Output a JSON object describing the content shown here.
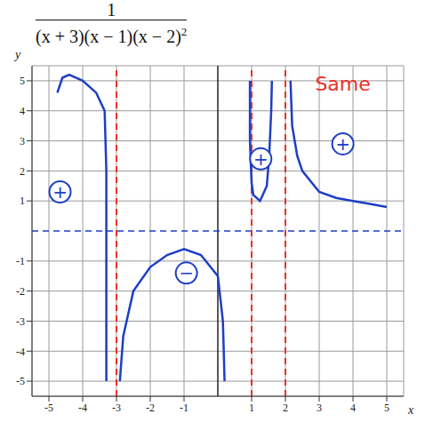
{
  "chart_data": {
    "type": "line",
    "title": {
      "numerator": "1",
      "denominator": "(x + 3)(x − 1)(x − 2)",
      "exponent": "2"
    },
    "xlabel": "x",
    "ylabel": "y",
    "xlim": [
      -5.5,
      5.5
    ],
    "ylim": [
      -5.5,
      5.5
    ],
    "xticks": [
      -5,
      -4,
      -3,
      -2,
      -1,
      1,
      2,
      3,
      4,
      5
    ],
    "yticks": [
      -5,
      -4,
      -3,
      -2,
      -1,
      1,
      2,
      3,
      4,
      5
    ],
    "grid": true,
    "color": "#1d3fc4",
    "series": [
      {
        "x": [
          -4.75,
          -4.6,
          -4.4,
          -4.0,
          -3.6,
          -3.35,
          -3.3,
          -3.3,
          -3.3
        ],
        "values": [
          4.6,
          5.1,
          5.2,
          5.0,
          4.6,
          4.0,
          2.0,
          -2.0,
          -5.0
        ]
      },
      {
        "x": [
          -2.9,
          -2.8,
          -2.5,
          -2.0,
          -1.5,
          -1.0,
          -0.5,
          0.0,
          0.15,
          0.2
        ],
        "values": [
          -5.0,
          -3.5,
          -2.0,
          -1.2,
          -0.8,
          -0.6,
          -0.8,
          -1.5,
          -3.0,
          -5.0
        ]
      },
      {
        "x": [
          0.95,
          0.95,
          1.0,
          1.05,
          1.25,
          1.45,
          1.52,
          1.58,
          1.6
        ],
        "values": [
          5.0,
          3.0,
          1.6,
          1.2,
          1.0,
          1.5,
          2.5,
          4.0,
          5.0
        ]
      },
      {
        "x": [
          2.15,
          2.2,
          2.35,
          2.5,
          3.0,
          3.5,
          4.0,
          4.5,
          5.0
        ],
        "values": [
          5.0,
          3.5,
          2.5,
          2.0,
          1.3,
          1.1,
          1.0,
          0.9,
          0.8
        ]
      }
    ],
    "vertical_asymptotes": {
      "x": [
        -3,
        1,
        2
      ],
      "color": "#e8312a",
      "line_style": "dashed"
    },
    "horizontal_asymptote": {
      "y": 0,
      "color": "#1d3fc4",
      "line_style": "dashed"
    },
    "annotations": [
      {
        "text": "+",
        "x": -4.67,
        "y": 1.3,
        "color": "#1d3fc4",
        "marker": "circle"
      },
      {
        "text": "−",
        "x": -0.93,
        "y": -1.4,
        "color": "#1d3fc4",
        "marker": "circle"
      },
      {
        "text": "+",
        "x": 1.27,
        "y": 2.4,
        "color": "#1d3fc4",
        "marker": "circle"
      },
      {
        "text": "+",
        "x": 3.7,
        "y": 2.9,
        "color": "#1d3fc4",
        "marker": "circle"
      },
      {
        "text": "Same",
        "x": 3.7,
        "y": 4.9,
        "color": "#e8312a",
        "marker": "none"
      }
    ]
  }
}
